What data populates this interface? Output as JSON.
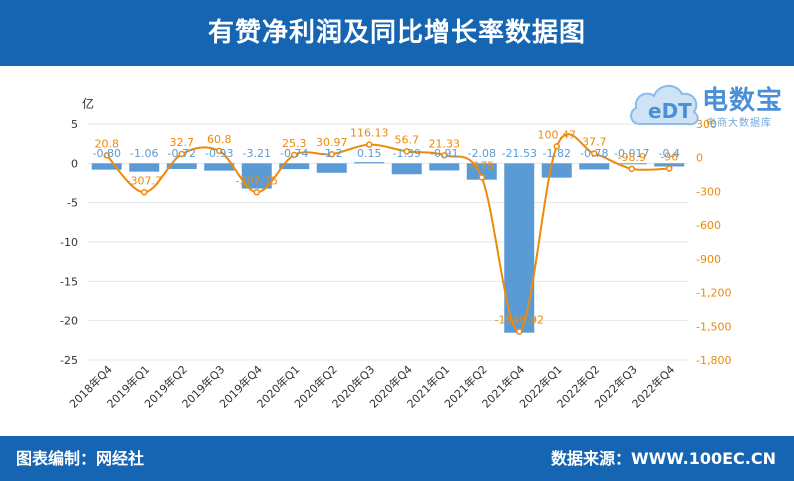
{
  "header": {
    "title": "有赞净利润及同比增长率数据图"
  },
  "footer": {
    "editor": "图表编制：网经社",
    "source": "数据来源：WWW.100EC.CN"
  },
  "logo": {
    "brand": "电数宝",
    "tagline": "电商大数据库"
  },
  "colors": {
    "bar": "#5b9bd5",
    "line": "#ed8a0a",
    "header": "#1565b3"
  },
  "chart_data": {
    "type": "bar",
    "categories": [
      "2018年Q4",
      "2019年Q1",
      "2019年Q2",
      "2019年Q3",
      "2019年Q4",
      "2020年Q1",
      "2020年Q2",
      "2020年Q3",
      "2020年Q4",
      "2021年Q1",
      "2021年Q2",
      "2021年Q4",
      "2022年Q1",
      "2022年Q2",
      "2022年Q3",
      "2022年Q4"
    ],
    "series": [
      {
        "axis": "left",
        "type": "bar",
        "values": [
          -0.8,
          -1.06,
          -0.72,
          -0.93,
          -3.21,
          -0.74,
          -1.2,
          0.15,
          -1.39,
          -0.91,
          -2.08,
          -21.53,
          -1.82,
          -0.78,
          -0.017,
          -0.4
        ],
        "labels": [
          "-0.80",
          "-1.06",
          "-0.72",
          "-0.93",
          "-3.21",
          "-0.74",
          "-1.2",
          "0.15",
          "-1.39",
          "-0.91",
          "-2.08",
          "-21.53",
          "-1.82",
          "-0.78",
          "-0.017",
          "-0.4"
        ]
      },
      {
        "axis": "right",
        "type": "line",
        "values": [
          20.8,
          -307.7,
          32.7,
          60.8,
          -307.75,
          25.3,
          30.97,
          116.13,
          56.7,
          21.33,
          -175,
          -1546.92,
          100.47,
          37.7,
          -98.9,
          -96
        ],
        "labels": [
          "20.8",
          "-307.7",
          "32.7",
          "60.8",
          "-307.75",
          "25.3",
          "30.97",
          "116.13",
          "56.7",
          "21.33",
          "-175",
          "-1546.92",
          "100.47",
          "37.7",
          "-98.9",
          "-96"
        ]
      }
    ],
    "left_axis": {
      "unit": "亿",
      "min": -25,
      "max": 5,
      "ticks": [
        "5",
        "0",
        "-5",
        "-10",
        "-15",
        "-20",
        "-25"
      ]
    },
    "right_axis": {
      "unit": "%",
      "min": -1800,
      "max": 300,
      "ticks": [
        "300",
        "0",
        "-300",
        "-600",
        "-900",
        "-1,200",
        "-1,500",
        "-1,800"
      ]
    },
    "grid": true
  }
}
